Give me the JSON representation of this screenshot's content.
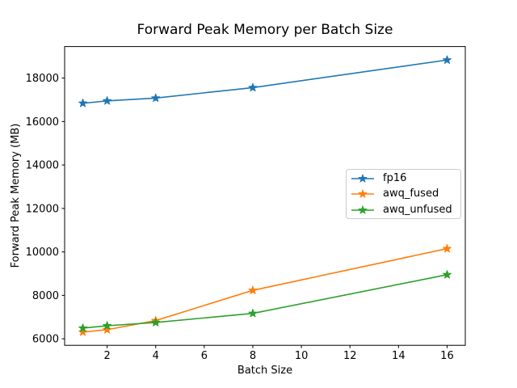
{
  "chart_data": {
    "type": "line",
    "title": "Forward Peak Memory per Batch Size",
    "xlabel": "Batch Size",
    "ylabel": "Forward Peak Memory (MB)",
    "x": [
      1,
      2,
      4,
      8,
      16
    ],
    "series": [
      {
        "name": "fp16",
        "color": "#1f77b4",
        "values": [
          16840,
          16950,
          17080,
          17560,
          18830
        ]
      },
      {
        "name": "awq_fused",
        "color": "#ff7f0e",
        "values": [
          6310,
          6420,
          6840,
          8230,
          10150
        ]
      },
      {
        "name": "awq_unfused",
        "color": "#2ca02c",
        "values": [
          6490,
          6600,
          6750,
          7170,
          8950
        ]
      }
    ],
    "marker": "star",
    "xticks": [
      2,
      4,
      6,
      8,
      10,
      12,
      14,
      16
    ],
    "yticks": [
      6000,
      8000,
      10000,
      12000,
      14000,
      16000,
      18000
    ],
    "xlim": [
      0.25,
      16.75
    ],
    "ylim": [
      5700,
      19450
    ],
    "grid": false,
    "legend_position": "center-right",
    "axis_color": "#000000",
    "background_color": "#ffffff"
  }
}
